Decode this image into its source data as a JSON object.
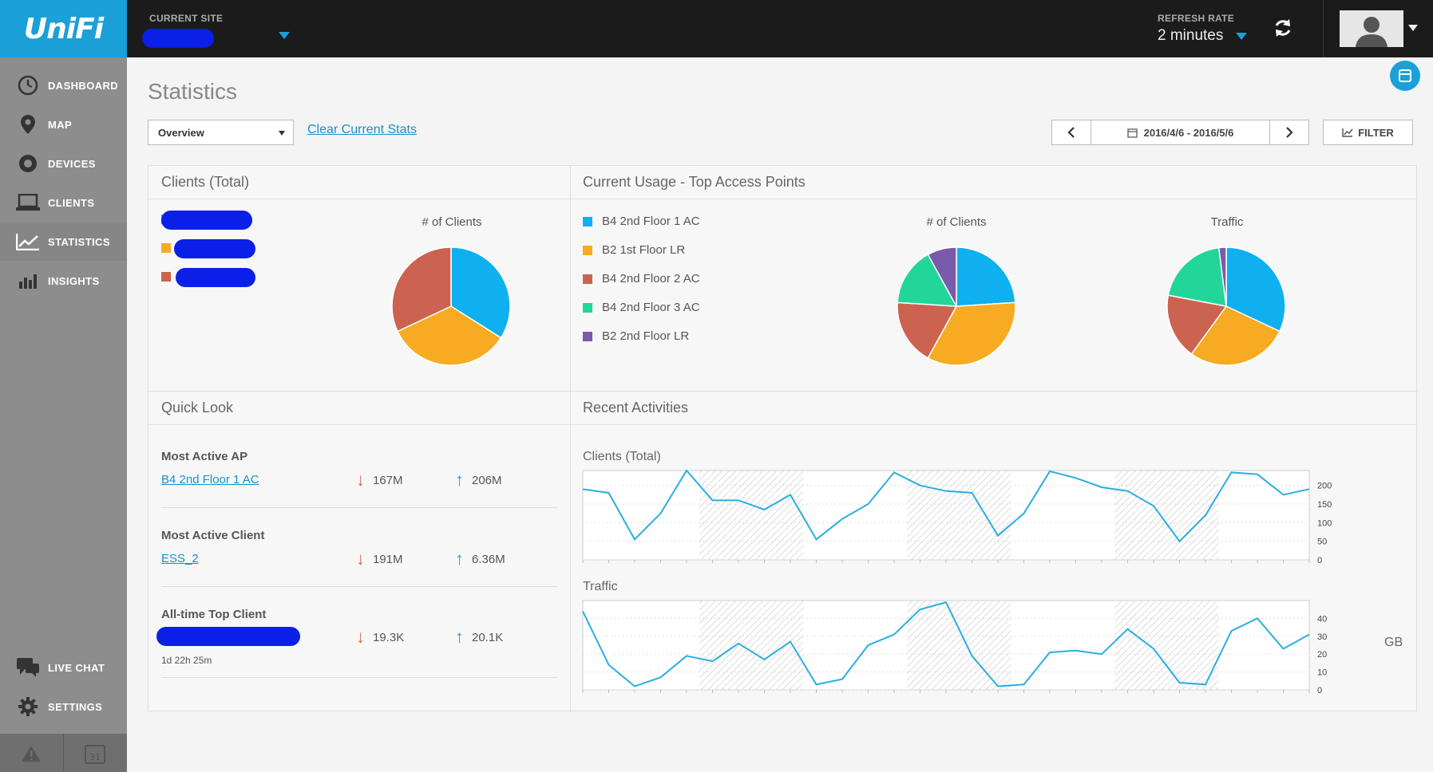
{
  "header": {
    "logo": "UniFi",
    "site_label": "CURRENT SITE",
    "refresh_label": "REFRESH RATE",
    "refresh_value": "2 minutes"
  },
  "sidebar": {
    "items": [
      {
        "label": "DASHBOARD",
        "icon": "dashboard-icon"
      },
      {
        "label": "MAP",
        "icon": "map-pin-icon"
      },
      {
        "label": "DEVICES",
        "icon": "devices-icon"
      },
      {
        "label": "CLIENTS",
        "icon": "laptop-icon"
      },
      {
        "label": "STATISTICS",
        "icon": "line-chart-icon"
      },
      {
        "label": "INSIGHTS",
        "icon": "bar-chart-icon"
      },
      {
        "label": "LIVE CHAT",
        "icon": "chat-icon"
      },
      {
        "label": "SETTINGS",
        "icon": "gear-icon"
      }
    ],
    "bottom_badge": "31"
  },
  "main": {
    "title": "Statistics",
    "view_select": "Overview",
    "clear_link": "Clear Current Stats",
    "date_range": "2016/4/6 - 2016/5/6",
    "filter_label": "FILTER"
  },
  "panels": {
    "clients_total": {
      "title": "Clients (Total)",
      "chart_title": "# of Clients"
    },
    "top_aps": {
      "title": "Current Usage - Top Access Points",
      "legend": [
        {
          "name": "B4 2nd Floor 1 AC",
          "color": "#0fb0f0"
        },
        {
          "name": "B2 1st Floor LR",
          "color": "#f6ab22"
        },
        {
          "name": "B4 2nd Floor 2 AC",
          "color": "#cb6350"
        },
        {
          "name": "B4 2nd Floor 3 AC",
          "color": "#22d69a"
        },
        {
          "name": "B2 2nd Floor LR",
          "color": "#7a5aaa"
        }
      ],
      "chart1_title": "# of Clients",
      "chart2_title": "Traffic"
    },
    "quick_look": {
      "title": "Quick Look",
      "most_active_ap_label": "Most Active AP",
      "most_active_ap": "B4 2nd Floor 1 AC",
      "most_active_ap_down": "167M",
      "most_active_ap_up": "206M",
      "most_active_client_label": "Most Active Client",
      "most_active_client": "ESS_2",
      "most_active_client_down": "191M",
      "most_active_client_up": "6.36M",
      "alltime_label": "All-time Top Client",
      "alltime_duration": "1d 22h 25m",
      "alltime_down": "19.3K",
      "alltime_up": "20.1K"
    },
    "recent": {
      "title": "Recent Activities",
      "clients_title": "Clients (Total)",
      "traffic_title": "Traffic",
      "traffic_unit": "GB"
    }
  },
  "chart_data": [
    {
      "type": "pie",
      "title": "# of Clients",
      "values": [
        0.34,
        0.34,
        0.32
      ],
      "colors": [
        "#0fb0f0",
        "#f6ab22",
        "#cb6350"
      ]
    },
    {
      "type": "pie",
      "title": "# of Clients",
      "categories": [
        "B4 2nd Floor 1 AC",
        "B2 1st Floor LR",
        "B4 2nd Floor 2 AC",
        "B4 2nd Floor 3 AC",
        "B2 2nd Floor LR"
      ],
      "values": [
        0.24,
        0.34,
        0.18,
        0.16,
        0.08
      ],
      "colors": [
        "#0fb0f0",
        "#f6ab22",
        "#cb6350",
        "#22d69a",
        "#7a5aaa"
      ]
    },
    {
      "type": "pie",
      "title": "Traffic",
      "categories": [
        "B4 2nd Floor 1 AC",
        "B2 1st Floor LR",
        "B4 2nd Floor 2 AC",
        "B4 2nd Floor 3 AC",
        "B2 2nd Floor LR"
      ],
      "values": [
        0.32,
        0.28,
        0.18,
        0.2,
        0.02
      ],
      "colors": [
        "#0fb0f0",
        "#f6ab22",
        "#cb6350",
        "#22d69a",
        "#7a5aaa"
      ]
    },
    {
      "type": "line",
      "title": "Clients (Total)",
      "ylim": [
        0,
        240
      ],
      "yticks": [
        0,
        50,
        100,
        150,
        200
      ],
      "values": [
        190,
        180,
        55,
        125,
        240,
        160,
        160,
        135,
        175,
        55,
        110,
        150,
        235,
        200,
        185,
        180,
        65,
        125,
        238,
        220,
        195,
        185,
        145,
        50,
        120,
        235,
        230,
        175,
        190
      ]
    },
    {
      "type": "line",
      "title": "Traffic",
      "ylabel": "GB",
      "ylim": [
        0,
        50
      ],
      "yticks": [
        0,
        10,
        20,
        30,
        40
      ],
      "values": [
        44,
        14,
        2,
        7,
        19,
        16,
        26,
        17,
        27,
        3,
        6,
        25,
        31,
        45,
        49,
        19,
        2,
        3,
        21,
        22,
        20,
        34,
        23,
        4,
        3,
        33,
        40,
        23,
        31
      ]
    }
  ]
}
